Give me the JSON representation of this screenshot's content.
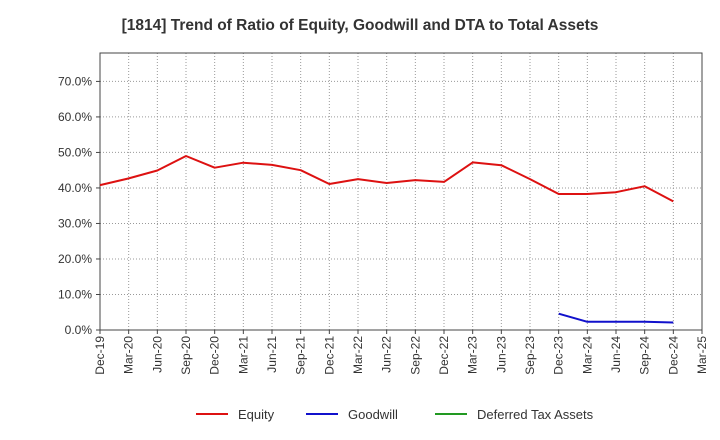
{
  "chart_data": {
    "type": "line",
    "title": "[1814]  Trend of Ratio of Equity, Goodwill and DTA to Total Assets",
    "xlabel": "",
    "ylabel": "",
    "ylim": [
      0,
      0.78
    ],
    "yticks": [
      {
        "value": 0.0,
        "label": "0.0%"
      },
      {
        "value": 0.1,
        "label": "10.0%"
      },
      {
        "value": 0.2,
        "label": "20.0%"
      },
      {
        "value": 0.3,
        "label": "30.0%"
      },
      {
        "value": 0.4,
        "label": "40.0%"
      },
      {
        "value": 0.5,
        "label": "50.0%"
      },
      {
        "value": 0.6,
        "label": "60.0%"
      },
      {
        "value": 0.7,
        "label": "70.0%"
      }
    ],
    "categories": [
      "Dec-19",
      "Mar-20",
      "Jun-20",
      "Sep-20",
      "Dec-20",
      "Mar-21",
      "Jun-21",
      "Sep-21",
      "Dec-21",
      "Mar-22",
      "Jun-22",
      "Sep-22",
      "Dec-22",
      "Mar-23",
      "Jun-23",
      "Sep-23",
      "Dec-23",
      "Mar-24",
      "Jun-24",
      "Sep-24",
      "Dec-24",
      "Mar-25"
    ],
    "grid": true,
    "legend_position": "bottom",
    "series": [
      {
        "name": "Equity",
        "color": "#dd1111",
        "values": [
          0.408,
          0.427,
          0.449,
          0.49,
          0.457,
          0.471,
          0.465,
          0.45,
          0.411,
          0.425,
          0.414,
          0.422,
          0.417,
          0.472,
          0.464,
          0.425,
          0.383,
          0.383,
          0.388,
          0.405,
          0.362,
          null
        ]
      },
      {
        "name": "Goodwill",
        "color": "#1111cc",
        "values": [
          null,
          null,
          null,
          null,
          null,
          null,
          null,
          null,
          null,
          null,
          null,
          null,
          null,
          null,
          null,
          null,
          0.046,
          0.023,
          0.023,
          0.023,
          0.021,
          null
        ]
      },
      {
        "name": "Deferred Tax Assets",
        "color": "#229922",
        "values": [
          null,
          null,
          null,
          null,
          null,
          null,
          null,
          null,
          null,
          null,
          null,
          null,
          null,
          null,
          null,
          null,
          null,
          null,
          null,
          null,
          null,
          null
        ]
      }
    ]
  }
}
